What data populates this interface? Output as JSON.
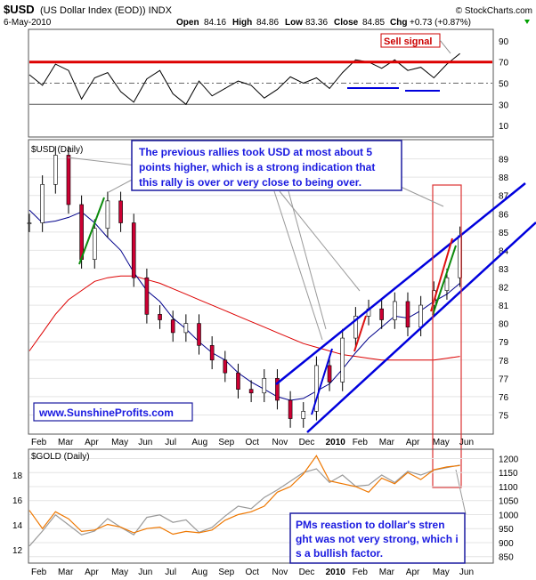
{
  "header": {
    "symbol": "$USD",
    "description": "(US Dollar Index (EOD)) INDX",
    "source": "© StockCharts.com",
    "date": "6-May-2010",
    "open_label": "Open",
    "open": "84.16",
    "high_label": "High",
    "high": "84.86",
    "low_label": "Low",
    "low": "83.36",
    "close_label": "Close",
    "close": "84.85",
    "chg_label": "Chg",
    "chg": "+0.73 (+0.87%)"
  },
  "rsi_panel": {
    "ticks": [
      "90",
      "70",
      "50",
      "30",
      "10"
    ],
    "sell_signal_label": "Sell signal"
  },
  "price_panel": {
    "title": "$USD (Daily)",
    "ticks": [
      "89",
      "88",
      "87",
      "86",
      "85",
      "84",
      "83",
      "82",
      "81",
      "80",
      "79",
      "78",
      "77",
      "76",
      "75"
    ],
    "annotation": "The previous rallies took USD at most about 5 points higher, which is a strong indication that this rally is over or very close to being over.",
    "watermark": "www.SunshineProfits.com"
  },
  "gold_panel": {
    "title": "$GOLD (Daily)",
    "right_ticks": [
      "1200",
      "1150",
      "1100",
      "1050",
      "1000",
      "950",
      "900",
      "850"
    ],
    "left_ticks": [
      "18",
      "16",
      "14",
      "12"
    ],
    "annotation": "PMs reastion to dollar's strenght was not very strong, which is a bullish factor."
  },
  "x_axis": {
    "labels": [
      "Feb",
      "Mar",
      "Apr",
      "May",
      "Jun",
      "Jul",
      "Aug",
      "Sep",
      "Oct",
      "Nov",
      "Dec",
      "2010",
      "Feb",
      "Mar",
      "Apr",
      "May",
      "Jun"
    ]
  },
  "chart_data": [
    {
      "type": "line",
      "name": "RSI",
      "x": [
        0,
        8,
        16,
        24,
        32,
        40,
        48,
        56,
        64,
        72,
        80,
        88,
        96,
        104,
        112,
        120,
        128,
        136,
        144,
        152,
        160,
        168,
        176,
        184,
        192,
        200,
        208,
        216,
        224,
        232,
        240,
        248,
        256,
        264
      ],
      "values": [
        58,
        48,
        68,
        62,
        35,
        55,
        60,
        42,
        32,
        54,
        62,
        40,
        30,
        52,
        38,
        45,
        52,
        48,
        36,
        44,
        56,
        50,
        55,
        45,
        60,
        72,
        70,
        64,
        72,
        62,
        65,
        55,
        68,
        78
      ],
      "ylim": [
        0,
        100
      ],
      "levels": [
        70,
        50,
        30
      ]
    },
    {
      "type": "line",
      "name": "$USD (Daily)",
      "x": [
        0,
        8,
        16,
        24,
        32,
        40,
        48,
        56,
        64,
        72,
        80,
        88,
        96,
        104,
        112,
        120,
        128,
        136,
        144,
        152,
        160,
        168,
        176,
        184,
        192,
        200,
        208,
        216,
        224,
        232,
        240,
        248,
        256,
        264
      ],
      "values": [
        85.5,
        87.6,
        89.2,
        86.5,
        83.5,
        85.2,
        86.7,
        85.5,
        82.5,
        80.5,
        80.2,
        79.5,
        80.0,
        78.8,
        78.0,
        77.3,
        76.4,
        76.2,
        77.0,
        75.8,
        74.8,
        75.2,
        77.7,
        76.8,
        79.2,
        80.4,
        80.8,
        80.2,
        81.2,
        79.8,
        81.0,
        81.8,
        82.5,
        84.8
      ],
      "ma_50": [
        86.2,
        85.5,
        85.6,
        85.8,
        86.1,
        85.5,
        84.7,
        84.0,
        82.8,
        81.8,
        81.2,
        80.3,
        79.7,
        79.0,
        78.4,
        78.0,
        77.3,
        76.8,
        76.4,
        76.0,
        75.8,
        75.9,
        76.3,
        76.7,
        77.5,
        78.4,
        79.2,
        79.8,
        80.4,
        80.3,
        80.7,
        81.2,
        81.6,
        82.2
      ],
      "ma_200": [
        78.5,
        79.5,
        80.5,
        81.3,
        81.8,
        82.3,
        82.5,
        82.6,
        82.6,
        82.4,
        82.2,
        81.9,
        81.6,
        81.3,
        81.0,
        80.7,
        80.4,
        80.1,
        79.8,
        79.5,
        79.2,
        78.9,
        78.7,
        78.5,
        78.3,
        78.2,
        78.1,
        78.0,
        78.0,
        78.0,
        78.0,
        78.0,
        78.1,
        78.2
      ],
      "ylim": [
        74,
        90
      ]
    },
    {
      "type": "line",
      "name": "$GOLD (Daily)",
      "x": [
        0,
        8,
        16,
        24,
        32,
        40,
        48,
        56,
        64,
        72,
        80,
        88,
        96,
        104,
        112,
        120,
        128,
        136,
        144,
        152,
        160,
        168,
        176,
        184,
        192,
        200,
        208,
        216,
        224,
        232,
        240,
        248,
        256,
        264
      ],
      "values": [
        12.3,
        13.5,
        14.8,
        14.0,
        13.2,
        13.5,
        14.5,
        13.8,
        13.2,
        14.6,
        14.8,
        14.2,
        14.4,
        13.4,
        13.8,
        14.7,
        15.5,
        15.3,
        16.2,
        16.8,
        17.5,
        18.2,
        18.5,
        17.4,
        18.0,
        17.1,
        17.2,
        18.0,
        17.4,
        18.3,
        18.0,
        18.4,
        18.6,
        18.8
      ],
      "silver": [
        1015,
        950,
        1010,
        985,
        940,
        945,
        965,
        955,
        935,
        950,
        955,
        930,
        940,
        935,
        945,
        980,
        1000,
        1010,
        1030,
        1080,
        1100,
        1145,
        1210,
        1120,
        1110,
        1100,
        1080,
        1130,
        1110,
        1150,
        1125,
        1160,
        1170,
        1175
      ],
      "ylim": [
        11,
        20
      ],
      "ylim_right": [
        830,
        1230
      ]
    }
  ]
}
